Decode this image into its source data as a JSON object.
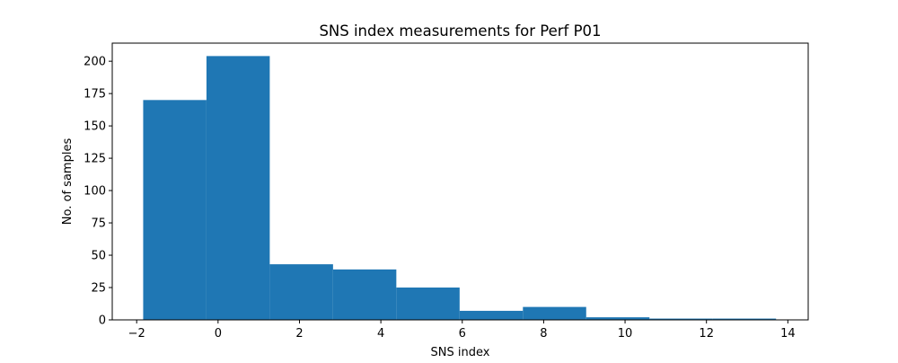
{
  "chart_data": {
    "type": "bar",
    "title": "SNS index measurements for Perf P01",
    "xlabel": "SNS index",
    "ylabel": "No. of samples",
    "bin_edges": [
      -1.84,
      -0.285,
      1.27,
      2.825,
      4.38,
      5.935,
      7.49,
      9.045,
      10.6,
      12.155,
      13.71
    ],
    "values": [
      170,
      204,
      43,
      39,
      25,
      7,
      10,
      2,
      1,
      1
    ],
    "xlim": [
      -2.6,
      14.5
    ],
    "ylim": [
      0,
      214
    ],
    "xticks": [
      -2,
      0,
      2,
      4,
      6,
      8,
      10,
      12,
      14
    ],
    "xtick_labels": [
      "−2",
      "0",
      "2",
      "4",
      "6",
      "8",
      "10",
      "12",
      "14"
    ],
    "yticks": [
      0,
      25,
      50,
      75,
      100,
      125,
      150,
      175,
      200
    ],
    "ytick_labels": [
      "0",
      "25",
      "50",
      "75",
      "100",
      "125",
      "150",
      "175",
      "200"
    ],
    "grid": false,
    "bar_color": "#1f77b4",
    "spine_color": "#000000"
  }
}
